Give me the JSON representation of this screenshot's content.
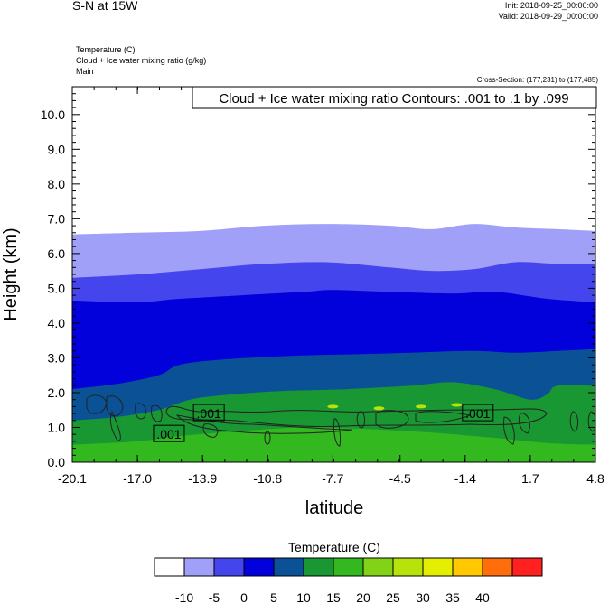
{
  "header": {
    "title": "S-N at 15W",
    "init": "Init: 2018-09-25_00:00:00",
    "valid": "Valid: 2018-09-29_00:00:00",
    "fields": [
      "Temperature   (C)",
      "Cloud + Ice water mixing ratio   (g/kg)",
      "Main"
    ],
    "cross_section": "Cross-Section: (177,231) to (177,485)"
  },
  "chart_data": {
    "type": "heatmap",
    "title": "S-N at 15W",
    "xlabel": "latitude",
    "ylabel": "Height (km)",
    "xlim": [
      -20.1,
      4.8
    ],
    "ylim": [
      0.0,
      10.8
    ],
    "x_ticks": [
      "-20.1",
      "-17.0",
      "-13.9",
      "-10.8",
      "-7.7",
      "-4.5",
      "-1.4",
      "1.7",
      "4.8"
    ],
    "y_ticks": [
      "0.0",
      "1.0",
      "2.0",
      "3.0",
      "4.0",
      "5.0",
      "6.0",
      "7.0",
      "8.0",
      "9.0",
      "10.0"
    ],
    "contour_info": "Cloud + Ice water mixing ratio Contours: .001 to .1 by .099",
    "contour_labels": [
      {
        "text": ".001",
        "lat": -13.6,
        "height": 1.4
      },
      {
        "text": ".001",
        "lat": -15.5,
        "height": 0.8
      },
      {
        "text": ".001",
        "lat": -0.8,
        "height": 1.4
      }
    ],
    "temperature_bands": [
      {
        "t_min": 20,
        "t_max": 25,
        "color": "#82d318",
        "lower": [
          [
            -20.1,
            0.0
          ],
          [
            4.8,
            0.0
          ]
        ],
        "upper": [
          [
            -20.1,
            0.0
          ],
          [
            4.8,
            0.0
          ]
        ]
      },
      {
        "t_min": 15,
        "t_max": 20,
        "color": "#33b820",
        "lower": [
          [
            -20.1,
            0.0
          ],
          [
            4.8,
            0.0
          ]
        ],
        "upper": [
          [
            -20.1,
            0.5
          ],
          [
            -17.0,
            0.6
          ],
          [
            -15.0,
            0.75
          ],
          [
            -12.0,
            0.9
          ],
          [
            -9.0,
            1.0
          ],
          [
            -6.0,
            0.95
          ],
          [
            -3.0,
            0.85
          ],
          [
            0.0,
            0.7
          ],
          [
            2.5,
            0.55
          ],
          [
            4.8,
            0.5
          ]
        ]
      },
      {
        "t_min": 10,
        "t_max": 15,
        "color": "#199732",
        "lower": [
          [
            -20.1,
            0.0
          ],
          [
            4.8,
            0.0
          ]
        ],
        "upper": [
          [
            -20.1,
            1.2
          ],
          [
            -18.0,
            1.3
          ],
          [
            -16.0,
            1.5
          ],
          [
            -14.5,
            1.8
          ],
          [
            -12.5,
            1.95
          ],
          [
            -10.0,
            2.05
          ],
          [
            -7.0,
            2.1
          ],
          [
            -4.0,
            2.2
          ],
          [
            -2.0,
            2.3
          ],
          [
            0.0,
            2.1
          ],
          [
            1.7,
            1.8
          ],
          [
            2.5,
            1.95
          ],
          [
            3.0,
            2.2
          ],
          [
            4.8,
            2.2
          ]
        ]
      },
      {
        "t_min": 5,
        "t_max": 10,
        "color": "#0a5295",
        "lower": [
          [
            -20.1,
            0.0
          ],
          [
            4.8,
            0.0
          ]
        ],
        "upper": [
          [
            -20.1,
            2.1
          ],
          [
            -18.0,
            2.25
          ],
          [
            -16.0,
            2.5
          ],
          [
            -15.0,
            2.8
          ],
          [
            -13.0,
            2.95
          ],
          [
            -10.0,
            3.05
          ],
          [
            -7.0,
            3.1
          ],
          [
            -4.0,
            3.15
          ],
          [
            -1.0,
            3.2
          ],
          [
            1.0,
            3.15
          ],
          [
            3.0,
            3.2
          ],
          [
            4.8,
            3.25
          ]
        ]
      },
      {
        "t_min": 0,
        "t_max": 5,
        "color": "#0200db",
        "lower": [
          [
            -20.1,
            0.0
          ],
          [
            4.8,
            0.0
          ]
        ],
        "upper": [
          [
            -20.1,
            4.65
          ],
          [
            -17.0,
            4.6
          ],
          [
            -15.0,
            4.7
          ],
          [
            -12.0,
            4.8
          ],
          [
            -9.0,
            4.9
          ],
          [
            -7.7,
            4.95
          ],
          [
            -5.0,
            4.9
          ],
          [
            -2.0,
            4.85
          ],
          [
            0.0,
            4.9
          ],
          [
            2.5,
            4.7
          ],
          [
            4.8,
            4.6
          ]
        ]
      },
      {
        "t_min": -5,
        "t_max": 0,
        "color": "#4545ee",
        "lower": [
          [
            -20.1,
            0.0
          ],
          [
            4.8,
            0.0
          ]
        ],
        "upper": [
          [
            -20.1,
            5.3
          ],
          [
            -17.0,
            5.4
          ],
          [
            -14.0,
            5.55
          ],
          [
            -11.0,
            5.7
          ],
          [
            -8.0,
            5.75
          ],
          [
            -5.0,
            5.6
          ],
          [
            -3.0,
            5.5
          ],
          [
            -1.0,
            5.55
          ],
          [
            1.0,
            5.75
          ],
          [
            3.0,
            5.7
          ],
          [
            4.8,
            5.7
          ]
        ]
      },
      {
        "t_min": -10,
        "t_max": -5,
        "color": "#a0a0f8",
        "lower": [
          [
            -20.1,
            0.0
          ],
          [
            4.8,
            0.0
          ]
        ],
        "upper": [
          [
            -20.1,
            6.55
          ],
          [
            -17.0,
            6.6
          ],
          [
            -14.0,
            6.65
          ],
          [
            -11.0,
            6.8
          ],
          [
            -8.0,
            6.85
          ],
          [
            -5.0,
            6.8
          ],
          [
            -3.0,
            6.7
          ],
          [
            -1.0,
            6.85
          ],
          [
            1.0,
            6.75
          ],
          [
            3.0,
            6.7
          ],
          [
            4.8,
            6.65
          ]
        ]
      }
    ],
    "colorbar": {
      "title": "Temperature  (C)",
      "colors": [
        "#ffffff",
        "#a0a0f8",
        "#4545ee",
        "#0200db",
        "#0a5295",
        "#199732",
        "#33b820",
        "#82d318",
        "#b8e20c",
        "#e4ef00",
        "#ffc800",
        "#ff6e0a",
        "#ff2020"
      ],
      "labels": [
        "-10",
        "-5",
        "0",
        "5",
        "10",
        "15",
        "20",
        "25",
        "30",
        "35",
        "40"
      ]
    }
  }
}
